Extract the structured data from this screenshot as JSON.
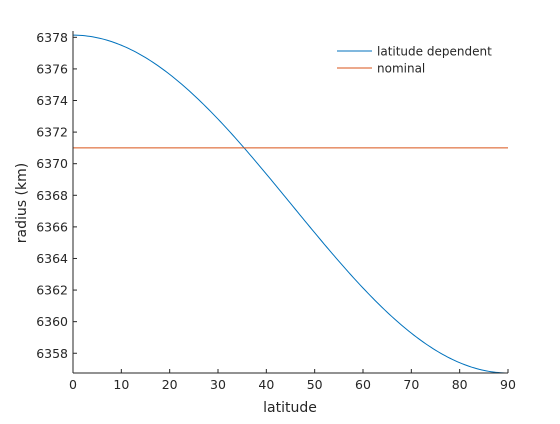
{
  "chart_data": {
    "type": "line",
    "xlabel": "latitude",
    "ylabel": "radius (km)",
    "xlim": [
      0,
      90
    ],
    "ylim": [
      6356.75,
      6378.4
    ],
    "xticks": [
      0,
      10,
      20,
      30,
      40,
      50,
      60,
      70,
      80,
      90
    ],
    "yticks": [
      6358,
      6360,
      6362,
      6364,
      6366,
      6368,
      6370,
      6372,
      6374,
      6376,
      6378
    ],
    "grid": false,
    "legend_position": "top-right",
    "series": [
      {
        "name": "latitude dependent",
        "color": "#0072BD",
        "equatorial_radius_km": 6378.137,
        "polar_radius_km": 6356.752,
        "x": [
          0,
          5,
          10,
          15,
          20,
          25,
          30,
          35,
          40,
          45,
          50,
          55,
          60,
          65,
          70,
          75,
          80,
          85,
          90
        ],
        "y": [
          6378.137,
          6377.975,
          6377.493,
          6376.704,
          6375.636,
          6374.318,
          6372.792,
          6371.103,
          6369.301,
          6367.445,
          6365.587,
          6363.789,
          6362.105,
          6360.583,
          6359.268,
          6358.201,
          6357.414,
          6356.914,
          6356.752
        ]
      },
      {
        "name": "nominal",
        "color": "#D95319",
        "x": [
          0,
          90
        ],
        "y": [
          6371,
          6371
        ]
      }
    ]
  }
}
